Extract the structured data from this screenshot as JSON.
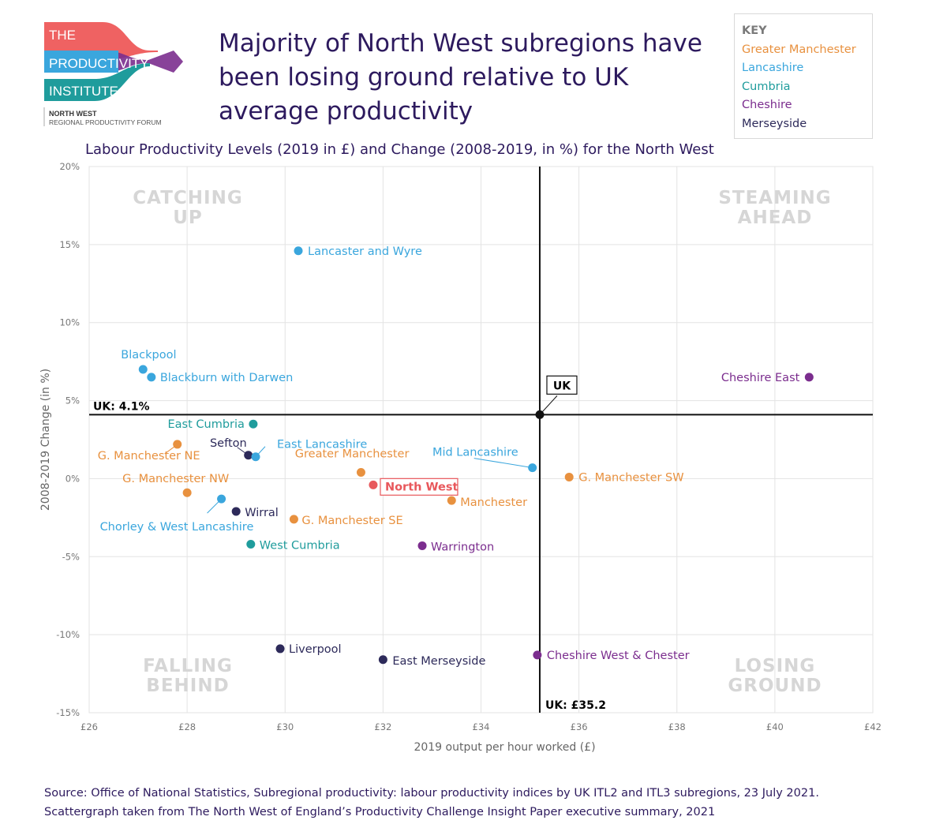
{
  "logo": {
    "line1": "THE",
    "line2": "PRODUCTIVITY",
    "line3": "INSTITUTE",
    "region": "NORTH WEST",
    "forum": "REGIONAL PRODUCTIVITY FORUM"
  },
  "headline": "Majority of North West subregions have been losing ground relative to UK average productivity",
  "key": {
    "title": "KEY",
    "items": [
      {
        "label": "Greater Manchester",
        "color": "#e8913f"
      },
      {
        "label": "Lancashire",
        "color": "#3aa6dd"
      },
      {
        "label": "Cumbria",
        "color": "#1f9c9c"
      },
      {
        "label": "Cheshire",
        "color": "#7b2d8e"
      },
      {
        "label": "Merseyside",
        "color": "#2d2a5a"
      }
    ]
  },
  "source": {
    "line1": "Source: Office of National Statistics, Subregional productivity: labour productivity indices by UK ITL2 and ITL3 subregions,  23 July 2021.",
    "line2": "Scattergraph taken from The North West of England’s Productivity Challenge Insight Paper executive summary, 2021"
  },
  "chart_data": {
    "type": "scatter",
    "title": "Labour Productivity Levels (2019 in £) and Change (2008-2019, in %) for the North West",
    "xlabel": "2019 output per hour worked (£)",
    "ylabel": "2008-2019 Change (in %)",
    "xlim": [
      26,
      42
    ],
    "ylim": [
      -15,
      20
    ],
    "xticks": [
      26,
      28,
      30,
      32,
      34,
      36,
      38,
      40,
      42
    ],
    "xtick_labels": [
      "£26",
      "£28",
      "£30",
      "£32",
      "£34",
      "£36",
      "£38",
      "£40",
      "£42"
    ],
    "yticks": [
      20,
      15,
      10,
      5,
      0,
      -5,
      -10,
      -15
    ],
    "ytick_labels": [
      "20%",
      "15%",
      "10%",
      "5%",
      "0%",
      "-5%",
      "-10%",
      "-15%"
    ],
    "grid": true,
    "reference": {
      "x": 35.2,
      "y": 4.1,
      "point_label": "UK",
      "x_label": "UK: £35.2",
      "y_label": "UK: 4.1%"
    },
    "quadrants": [
      {
        "line1": "CATCHING",
        "line2": "UP",
        "position": "top-left"
      },
      {
        "line1": "STEAMING",
        "line2": "AHEAD",
        "position": "top-right"
      },
      {
        "line1": "FALLING",
        "line2": "BEHIND",
        "position": "bottom-left"
      },
      {
        "line1": "LOSING",
        "line2": "GROUND",
        "position": "bottom-right"
      }
    ],
    "points": [
      {
        "label": "Lancaster and Wyre",
        "group": "Lancashire",
        "x": 30.27,
        "y": 14.6
      },
      {
        "label": "Blackpool",
        "group": "Lancashire",
        "x": 27.1,
        "y": 7.0
      },
      {
        "label": "Blackburn with Darwen",
        "group": "Lancashire",
        "x": 27.27,
        "y": 6.5
      },
      {
        "label": "Cheshire East",
        "group": "Cheshire",
        "x": 40.7,
        "y": 6.5
      },
      {
        "label": "East Cumbria",
        "group": "Cumbria",
        "x": 29.35,
        "y": 3.5
      },
      {
        "label": "G. Manchester NE",
        "group": "Greater Manchester",
        "x": 27.8,
        "y": 2.2
      },
      {
        "label": "Sefton",
        "group": "Merseyside",
        "x": 29.25,
        "y": 1.5
      },
      {
        "label": "East Lancashire",
        "group": "Lancashire",
        "x": 29.4,
        "y": 1.4
      },
      {
        "label": "Greater Manchester",
        "group": "Greater Manchester",
        "x": 31.55,
        "y": 0.4
      },
      {
        "label": "North West",
        "group": "North West",
        "x": 31.8,
        "y": -0.4
      },
      {
        "label": "Mid Lancashire",
        "group": "Lancashire",
        "x": 35.05,
        "y": 0.7
      },
      {
        "label": "G. Manchester SW",
        "group": "Greater Manchester",
        "x": 35.8,
        "y": 0.1
      },
      {
        "label": "G. Manchester NW",
        "group": "Greater Manchester",
        "x": 28.0,
        "y": -0.9
      },
      {
        "label": "Manchester",
        "group": "Greater Manchester",
        "x": 33.4,
        "y": -1.4
      },
      {
        "label": "Chorley & West Lancashire",
        "group": "Lancashire",
        "x": 28.7,
        "y": -1.3
      },
      {
        "label": "Wirral",
        "group": "Merseyside",
        "x": 29.0,
        "y": -2.1
      },
      {
        "label": "G. Manchester SE",
        "group": "Greater Manchester",
        "x": 30.18,
        "y": -2.6
      },
      {
        "label": "West Cumbria",
        "group": "Cumbria",
        "x": 29.3,
        "y": -4.2
      },
      {
        "label": "Warrington",
        "group": "Cheshire",
        "x": 32.8,
        "y": -4.3
      },
      {
        "label": "Liverpool",
        "group": "Merseyside",
        "x": 29.9,
        "y": -10.9
      },
      {
        "label": "East Merseyside",
        "group": "Merseyside",
        "x": 32.0,
        "y": -11.6
      },
      {
        "label": "Cheshire West & Chester",
        "group": "Cheshire",
        "x": 35.15,
        "y": -11.3
      }
    ],
    "group_colors": {
      "Greater Manchester": "#e8913f",
      "Lancashire": "#3aa6dd",
      "Cumbria": "#1f9c9c",
      "Cheshire": "#7b2d8e",
      "Merseyside": "#2d2a5a",
      "North West": "#e8585c"
    }
  }
}
